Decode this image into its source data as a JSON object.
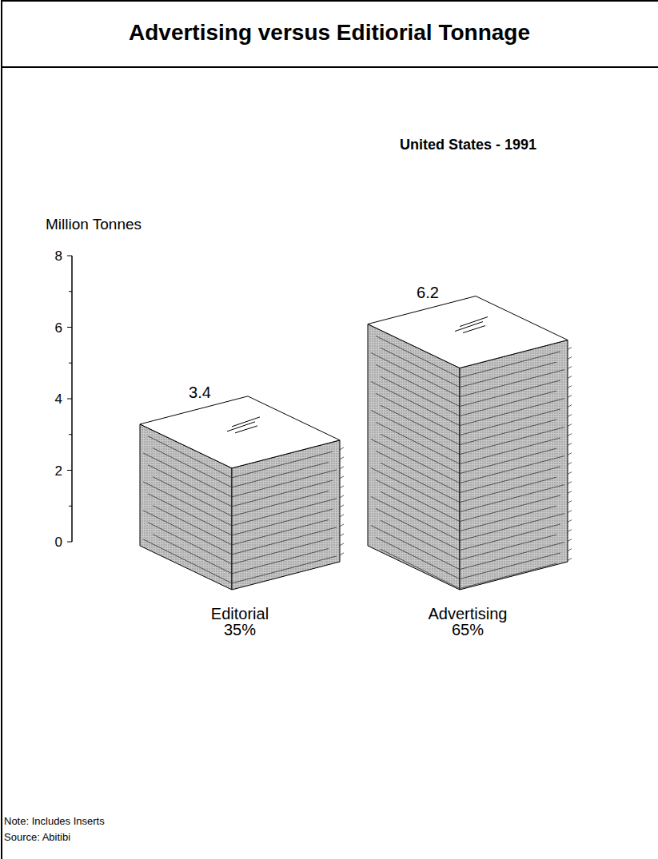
{
  "chart_data": {
    "type": "bar",
    "title": "Advertising versus Editiorial Tonnage",
    "subtitle": "United States - 1991",
    "y_label": "Million Tonnes",
    "categories": [
      "Editorial",
      "Advertising"
    ],
    "values": [
      3.4,
      6.2
    ],
    "shares": [
      35,
      65
    ],
    "share_labels": [
      "35%",
      "65%"
    ],
    "color": "#c8c8c8",
    "ylim": [
      0,
      8
    ],
    "yticks": [
      0,
      2,
      4,
      6,
      8
    ],
    "minor_yticks": [
      1,
      3,
      5,
      7
    ],
    "data_labels": true,
    "notes": [
      "Note: Includes Inserts",
      "Source: Abitibi"
    ]
  }
}
